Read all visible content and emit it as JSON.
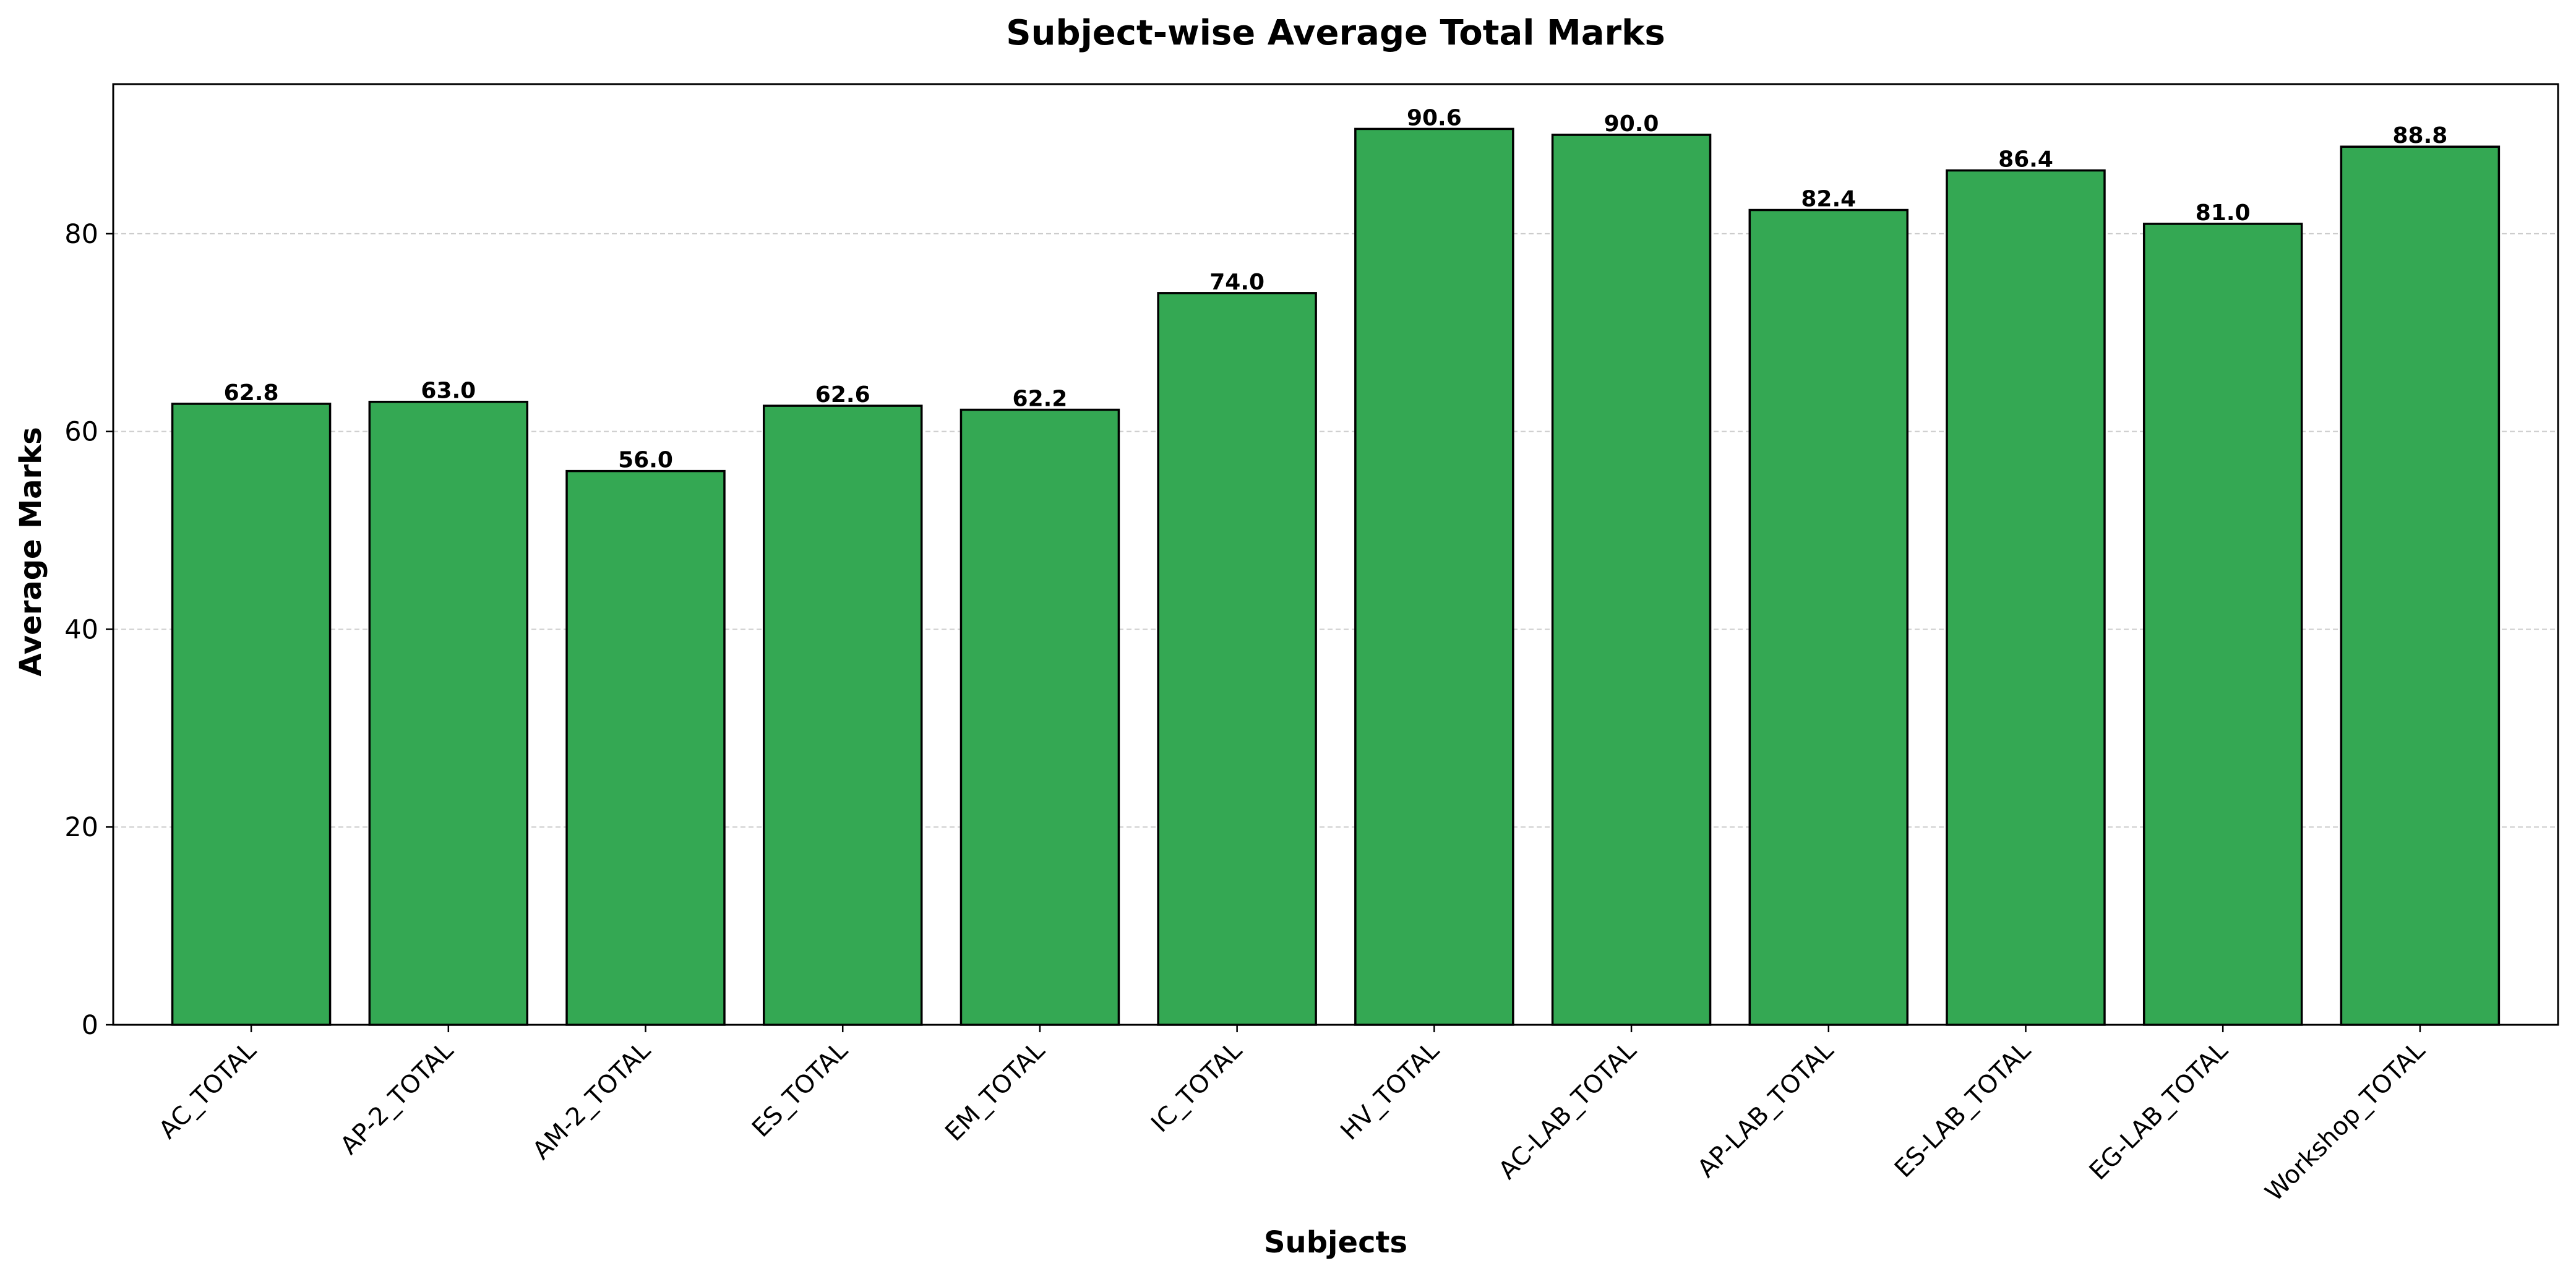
{
  "chart_data": {
    "type": "bar",
    "title": "Subject-wise Average Total Marks",
    "xlabel": "Subjects",
    "ylabel": "Average Marks",
    "categories": [
      "AC_TOTAL",
      "AP-2_TOTAL",
      "AM-2_TOTAL",
      "ES_TOTAL",
      "EM_TOTAL",
      "IC_TOTAL",
      "HV_TOTAL",
      "AC-LAB_TOTAL",
      "AP-LAB_TOTAL",
      "ES-LAB_TOTAL",
      "EG-LAB_TOTAL",
      "Workshop_TOTAL"
    ],
    "values": [
      62.8,
      63.0,
      56.0,
      62.6,
      62.2,
      74.0,
      90.6,
      90.0,
      82.4,
      86.4,
      81.0,
      88.8
    ],
    "value_labels": [
      "62.8",
      "63.0",
      "56.0",
      "62.6",
      "62.2",
      "74.0",
      "90.6",
      "90.0",
      "82.4",
      "86.4",
      "81.0",
      "88.8"
    ],
    "ylim": [
      0,
      95.13
    ],
    "yticks": [
      0,
      20,
      40,
      60,
      80
    ],
    "ytick_labels": [
      "0",
      "20",
      "40",
      "60",
      "80"
    ],
    "grid": "y-dashed",
    "bar_color": "#34a853",
    "bar_edge_color": "#000000"
  }
}
